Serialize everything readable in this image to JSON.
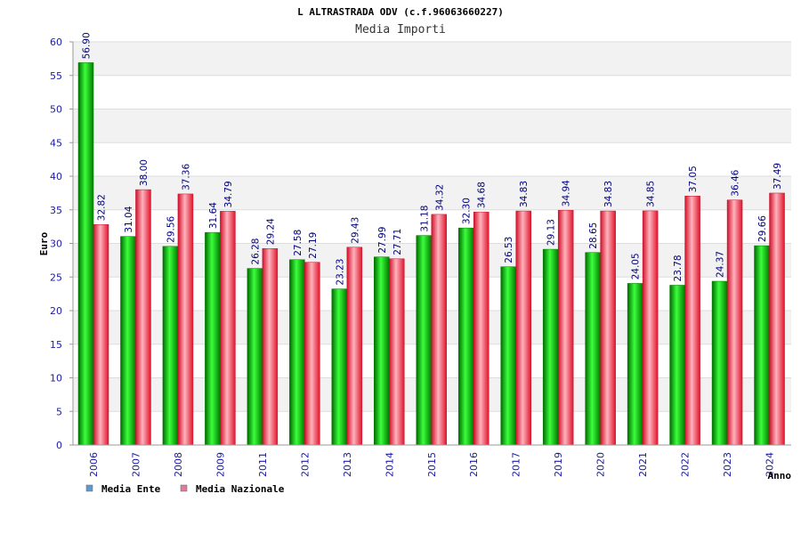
{
  "chart_data": {
    "type": "bar",
    "title": "L ALTRASTRADA ODV (c.f.96063660227)",
    "subtitle": "Media Importi",
    "xlabel": "Anno",
    "ylabel": "Euro",
    "ylim": [
      0,
      60
    ],
    "yticks": [
      0,
      5,
      10,
      15,
      20,
      25,
      30,
      35,
      40,
      45,
      50,
      55,
      60
    ],
    "grid": true,
    "legend_position": "bottom-left",
    "categories": [
      "2006",
      "2007",
      "2008",
      "2009",
      "2011",
      "2012",
      "2013",
      "2014",
      "2015",
      "2016",
      "2017",
      "2019",
      "2020",
      "2021",
      "2022",
      "2023",
      "2024"
    ],
    "series": [
      {
        "name": "Media Ente",
        "color": "#00aa00",
        "legend_color": "#5b9bd5",
        "values": [
          56.9,
          31.04,
          29.56,
          31.64,
          26.28,
          27.58,
          23.23,
          27.99,
          31.18,
          32.3,
          26.53,
          29.13,
          28.65,
          24.05,
          23.78,
          24.37,
          29.66
        ],
        "labels": [
          "56.90",
          "31.04",
          "29.56",
          "31.64",
          "26.28",
          "27.58",
          "23.23",
          "27.99",
          "31.18",
          "32.30",
          "26.53",
          "29.13",
          "28.65",
          "24.05",
          "23.78",
          "24.37",
          "29.66"
        ]
      },
      {
        "name": "Media Nazionale",
        "color": "#e8162f",
        "legend_color": "#e07aa0",
        "values": [
          32.82,
          38.0,
          37.36,
          34.79,
          29.24,
          27.19,
          29.43,
          27.71,
          34.32,
          34.68,
          34.83,
          34.94,
          34.83,
          34.85,
          37.05,
          36.46,
          37.49
        ],
        "labels": [
          "32.82",
          "38.00",
          "37.36",
          "34.79",
          "29.24",
          "27.19",
          "29.43",
          "27.71",
          "34.32",
          "34.68",
          "34.83",
          "34.94",
          "34.83",
          "34.85",
          "37.05",
          "36.46",
          "37.49"
        ]
      }
    ]
  }
}
